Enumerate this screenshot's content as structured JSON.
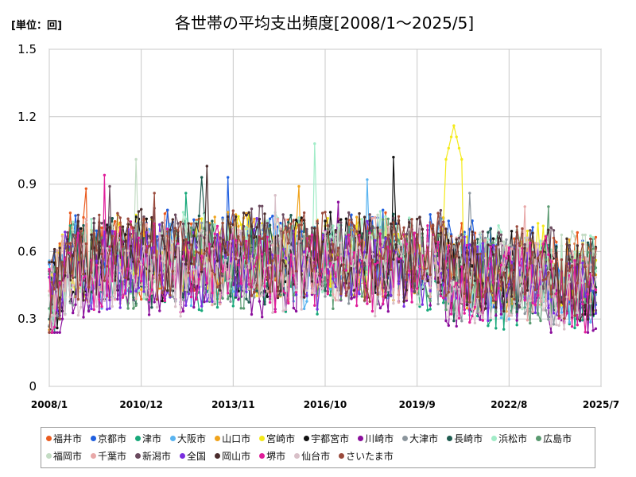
{
  "chart_data": {
    "type": "line",
    "title": "各世帯の平均支出頻度[2008/1～2025/5]",
    "unit_label": "[単位：回]",
    "xlabel": "",
    "ylabel": "",
    "ylim": [
      0,
      1.5
    ],
    "y_ticks": [
      0,
      0.3,
      0.6,
      0.9,
      1.2,
      1.5
    ],
    "y_tick_labels": [
      "0",
      "0.3",
      "0.6",
      "0.9",
      "1.2",
      "1.5"
    ],
    "x_range_months": [
      0,
      210
    ],
    "x_ticks": [
      0,
      35,
      70,
      105,
      140,
      175,
      210
    ],
    "x_tick_labels": [
      "2008/1",
      "2010/12",
      "2013/11",
      "2016/10",
      "2019/9",
      "2022/8",
      "2025/7"
    ],
    "grid": true,
    "legend_position": "bottom",
    "series": [
      {
        "name": "福井市",
        "color": "#ea5b1f",
        "base": 0.58,
        "spike_month": 14,
        "spike_value": 0.88
      },
      {
        "name": "京都市",
        "color": "#1f5fe0",
        "base": 0.6,
        "spike_month": 68,
        "spike_value": 0.93
      },
      {
        "name": "津市",
        "color": "#18a87a",
        "base": 0.52,
        "spike_month": 52,
        "spike_value": 0.86
      },
      {
        "name": "大阪市",
        "color": "#5ab4f0",
        "base": 0.55,
        "spike_month": 121,
        "spike_value": 0.92
      },
      {
        "name": "山口市",
        "color": "#f0a31c",
        "base": 0.58,
        "spike_month": 95,
        "spike_value": 0.89
      },
      {
        "name": "宮崎市",
        "color": "#f4ea1a",
        "base": 0.58,
        "spike_month": 154,
        "spike_value": 1.16
      },
      {
        "name": "宇都宮市",
        "color": "#111111",
        "base": 0.57,
        "spike_month": 131,
        "spike_value": 1.02
      },
      {
        "name": "川崎市",
        "color": "#8b0f9c",
        "base": 0.5,
        "spike_month": 110,
        "spike_value": 0.82
      },
      {
        "name": "大津市",
        "color": "#8c969d",
        "base": 0.55,
        "spike_month": 160,
        "spike_value": 0.86
      },
      {
        "name": "長崎市",
        "color": "#1f5c50",
        "base": 0.56,
        "spike_month": 58,
        "spike_value": 0.93
      },
      {
        "name": "浜松市",
        "color": "#a2ecc8",
        "base": 0.58,
        "spike_month": 101,
        "spike_value": 1.08
      },
      {
        "name": "広島市",
        "color": "#5a9a70",
        "base": 0.55,
        "spike_month": 190,
        "spike_value": 0.8
      },
      {
        "name": "福岡市",
        "color": "#c4dcc4",
        "base": 0.57,
        "spike_month": 33,
        "spike_value": 1.01
      },
      {
        "name": "千葉市",
        "color": "#e8a8a8",
        "base": 0.55,
        "spike_month": 181,
        "spike_value": 0.8
      },
      {
        "name": "新潟市",
        "color": "#6a4a5e",
        "base": 0.6,
        "spike_month": 23,
        "spike_value": 0.89
      },
      {
        "name": "全国",
        "color": "#7a2ee0",
        "base": 0.54,
        "spike_month": 0,
        "spike_value": 0.54
      },
      {
        "name": "岡山市",
        "color": "#4a2c2c",
        "base": 0.58,
        "spike_month": 60,
        "spike_value": 0.98
      },
      {
        "name": "堺市",
        "color": "#e01e9a",
        "base": 0.53,
        "spike_month": 21,
        "spike_value": 0.94
      },
      {
        "name": "仙台市",
        "color": "#d8c0c8",
        "base": 0.52,
        "spike_month": 86,
        "spike_value": 0.85
      },
      {
        "name": "さいたま市",
        "color": "#9a4a3c",
        "base": 0.58,
        "spike_month": 40,
        "spike_value": 0.86
      }
    ]
  }
}
